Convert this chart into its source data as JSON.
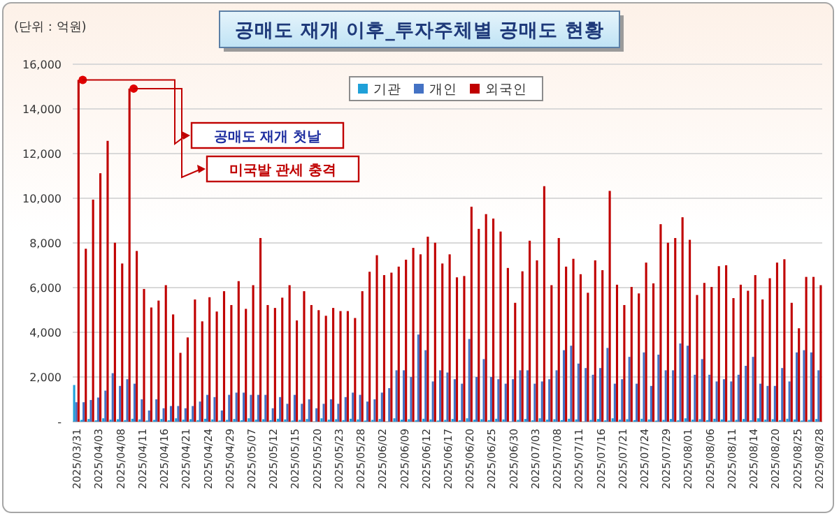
{
  "chart_data": {
    "type": "bar",
    "title": "공매도 재개 이후_투자주체별 공매도 현황",
    "ylabel": "(단위 : 억원)",
    "categories": [
      "2025/03/31",
      null,
      null,
      "2025/04/03",
      null,
      null,
      "2025/04/08",
      null,
      null,
      "2025/04/11",
      null,
      null,
      "2025/04/16",
      null,
      null,
      "2025/04/21",
      null,
      null,
      "2025/04/24",
      null,
      null,
      "2025/04/29",
      null,
      null,
      "2025/05/07",
      null,
      null,
      "2025/05/12",
      null,
      null,
      "2025/05/15",
      null,
      null,
      "2025/05/20",
      null,
      null,
      "2025/05/23",
      null,
      null,
      "2025/05/28",
      null,
      null,
      "2025/06/02",
      null,
      null,
      "2025/06/09",
      null,
      null,
      "2025/06/12",
      null,
      null,
      "2025/06/17",
      null,
      null,
      "2025/06/20",
      null,
      null,
      "2025/06/25",
      null,
      null,
      "2025/06/30",
      null,
      null,
      "2025/07/03",
      null,
      null,
      "2025/07/08",
      null,
      null,
      "2025/07/11",
      null,
      null,
      "2025/07/16",
      null,
      null,
      "2025/07/21",
      null,
      null,
      "2025/07/24",
      null,
      null,
      "2025/07/29",
      null,
      null,
      "2025/08/01",
      null,
      null,
      "2025/08/06",
      null,
      null,
      "2025/08/11",
      null,
      null,
      "2025/08/14",
      null,
      null,
      "2025/08/20",
      null,
      null,
      "2025/08/25",
      null,
      null,
      "2025/08/28"
    ],
    "series": [
      {
        "name": "기관",
        "color": "#1fa0d8",
        "values": [
          1640,
          80,
          120,
          60,
          150,
          90,
          110,
          70,
          130,
          100,
          50,
          80,
          120,
          60,
          150,
          90,
          110,
          70,
          130,
          100,
          50,
          80,
          120,
          60,
          150,
          90,
          110,
          70,
          130,
          100,
          50,
          80,
          120,
          null,
          150,
          90,
          110,
          70,
          130,
          100,
          50,
          80,
          120,
          null,
          150,
          90,
          110,
          70,
          130,
          100,
          50,
          80,
          120,
          60,
          150,
          90,
          110,
          70,
          130,
          100,
          null,
          80,
          120,
          60,
          150,
          90,
          110,
          70,
          130,
          100,
          null,
          80,
          120,
          60,
          150,
          90,
          110,
          70,
          130,
          100,
          50,
          80,
          120,
          60,
          150,
          90,
          110,
          70,
          130,
          100,
          50,
          80,
          120,
          60,
          150,
          90,
          110,
          70,
          130,
          100,
          50,
          80,
          120
        ]
      },
      {
        "name": "개인",
        "color": "#4472c4",
        "values": [
          870,
          870,
          970,
          1080,
          1390,
          2170,
          1600,
          1900,
          1700,
          1000,
          500,
          1000,
          600,
          700,
          700,
          600,
          700,
          900,
          1200,
          1100,
          500,
          1200,
          1300,
          1300,
          1200,
          1200,
          1200,
          600,
          1100,
          800,
          1200,
          800,
          1000,
          600,
          800,
          1000,
          800,
          1100,
          1300,
          1200,
          900,
          1000,
          1300,
          1500,
          2300,
          2300,
          2000,
          3900,
          3200,
          1800,
          2300,
          2200,
          1900,
          1700,
          3700,
          2000,
          2800,
          2000,
          1900,
          1700,
          1900,
          2300,
          2300,
          1700,
          1800,
          1900,
          2300,
          3200,
          3400,
          2600,
          2400,
          2100,
          2400,
          3300,
          1700,
          1900,
          2900,
          1700,
          3100,
          1600,
          3000,
          2300,
          2300,
          3500,
          3400,
          2100,
          2800,
          2100,
          1800,
          1900,
          1800,
          2100,
          2500,
          2900,
          1700,
          1600,
          1600,
          2400,
          1800,
          3100,
          3200,
          3100,
          2300
        ]
      },
      {
        "name": "외국인",
        "color": "#c00000",
        "values": [
          15300,
          7740,
          9940,
          11120,
          12570,
          8010,
          7080,
          14910,
          7640,
          5940,
          5110,
          5420,
          6110,
          4800,
          3080,
          3770,
          5470,
          4490,
          5570,
          4930,
          5840,
          5220,
          6290,
          5050,
          6110,
          8220,
          5220,
          5090,
          5550,
          6110,
          4530,
          5840,
          5220,
          4990,
          4740,
          5090,
          4950,
          4950,
          4640,
          5840,
          6710,
          7450,
          6560,
          6670,
          6940,
          7250,
          7780,
          7490,
          8280,
          8010,
          7080,
          7490,
          6460,
          6520,
          9620,
          8630,
          9290,
          9090,
          8510,
          6880,
          5320,
          6730,
          8100,
          7220,
          10540,
          6110,
          8220,
          6940,
          7290,
          6600,
          5770,
          7220,
          6780,
          10330,
          6130,
          5220,
          6030,
          5740,
          7120,
          6190,
          8840,
          8010,
          8220,
          9150,
          8140,
          5670,
          6210,
          6030,
          6960,
          7000,
          5530,
          6130,
          5860,
          6560,
          5470,
          6420,
          7120,
          7270,
          5320,
          4180,
          6480,
          6480,
          6110
        ]
      }
    ],
    "ylim": [
      0,
      16000
    ],
    "yticks": [
      {
        "value": 0,
        "label": "-"
      },
      {
        "value": 2000,
        "label": "2,000"
      },
      {
        "value": 4000,
        "label": "4,000"
      },
      {
        "value": 6000,
        "label": "6,000"
      },
      {
        "value": 8000,
        "label": "8,000"
      },
      {
        "value": 10000,
        "label": "10,000"
      },
      {
        "value": 12000,
        "label": "12,000"
      },
      {
        "value": 14000,
        "label": "14,000"
      },
      {
        "value": 16000,
        "label": "16,000"
      }
    ],
    "grid": "y",
    "legend": "top",
    "annotations": [
      "공매도 재개 첫날",
      "미국발 관세 충격"
    ]
  }
}
